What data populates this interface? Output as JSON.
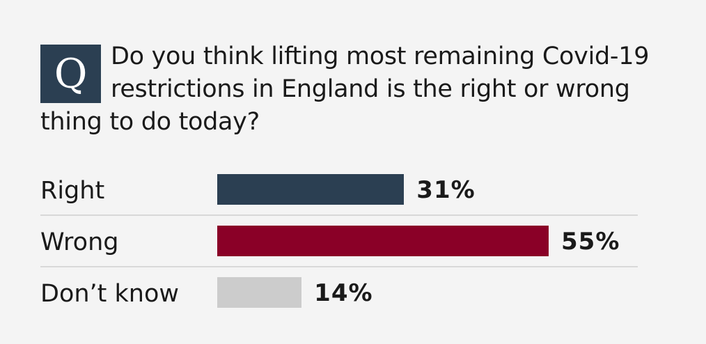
{
  "question": {
    "badge": "Q",
    "text": "Do you think lifting most remaining Covid-19 restrictions in England is the right or wrong thing to do today?"
  },
  "chart_data": {
    "type": "bar",
    "orientation": "horizontal",
    "categories": [
      "Right",
      "Wrong",
      "Don’t know"
    ],
    "values": [
      31,
      55,
      14
    ],
    "value_labels": [
      "31%",
      "55%",
      "14%"
    ],
    "colors": [
      "#2b3f52",
      "#8a0027",
      "#cccccc"
    ],
    "unit": "%",
    "xlim": [
      0,
      100
    ]
  }
}
